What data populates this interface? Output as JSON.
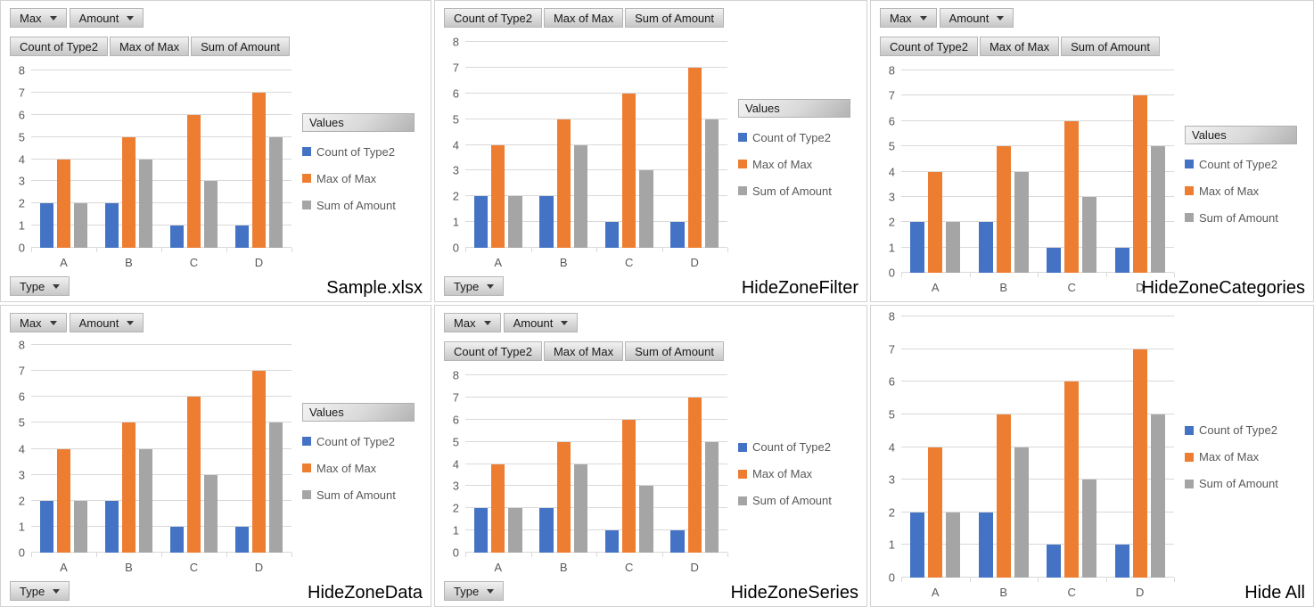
{
  "chart_data": {
    "type": "bar",
    "categories": [
      "A",
      "B",
      "C",
      "D"
    ],
    "series": [
      {
        "name": "Count of Type2",
        "color": "#4472C4",
        "values": [
          2,
          2,
          1,
          1
        ]
      },
      {
        "name": "Max of Max",
        "color": "#ED7D31",
        "values": [
          4,
          5,
          6,
          7
        ]
      },
      {
        "name": "Sum of Amount",
        "color": "#A5A5A5",
        "values": [
          2,
          4,
          3,
          5
        ]
      }
    ],
    "ylim": [
      0,
      8
    ],
    "yticks": [
      0,
      1,
      2,
      3,
      4,
      5,
      6,
      7,
      8
    ],
    "grid": true,
    "legend_position": "right",
    "gridline_color": "#D9D9D9",
    "axis_text_color": "#595959"
  },
  "buttons": {
    "filter": [
      "Max",
      "Amount"
    ],
    "fields": [
      "Count of Type2",
      "Max of Max",
      "Sum of Amount"
    ],
    "values_label": "Values",
    "axis_label": "Type"
  },
  "panels": [
    {
      "caption": "Sample.xlsx",
      "show_filter_buttons": true,
      "show_field_buttons": true,
      "show_values_button": true,
      "show_axis_button": true
    },
    {
      "caption": "HideZoneFilter",
      "show_filter_buttons": false,
      "show_field_buttons": true,
      "show_values_button": true,
      "show_axis_button": true
    },
    {
      "caption": "HideZoneCategories",
      "show_filter_buttons": true,
      "show_field_buttons": true,
      "show_values_button": true,
      "show_axis_button": false
    },
    {
      "caption": "HideZoneData",
      "show_filter_buttons": true,
      "show_field_buttons": false,
      "show_values_button": true,
      "show_axis_button": true
    },
    {
      "caption": "HideZoneSeries",
      "show_filter_buttons": true,
      "show_field_buttons": true,
      "show_values_button": false,
      "show_axis_button": true
    },
    {
      "caption": "Hide All",
      "show_filter_buttons": false,
      "show_field_buttons": false,
      "show_values_button": false,
      "show_axis_button": false
    }
  ]
}
